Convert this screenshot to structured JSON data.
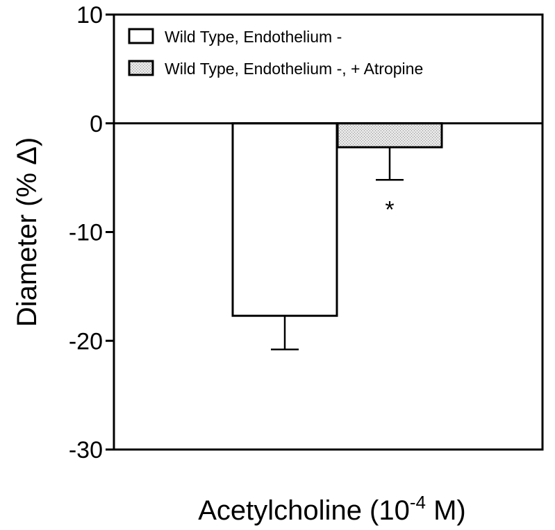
{
  "chart_data": {
    "type": "bar",
    "title": "",
    "xlabel": "Acetylcholine (10",
    "xlabel_exponent": "-4",
    "xlabel_suffix": " M)",
    "ylabel": "Diameter (% Δ)",
    "ylim": [
      -30,
      10
    ],
    "yticks": [
      10,
      0,
      -10,
      -20,
      -30
    ],
    "ytick_labels": [
      "10",
      "0",
      "-10",
      "-20",
      "-30"
    ],
    "grid": false,
    "legend_position": "top-left",
    "series": [
      {
        "name": "Wild Type, Endothelium -",
        "value": -17.7,
        "error": 3.1,
        "fill": "#ffffff",
        "pattern": "none"
      },
      {
        "name": "Wild Type, Endothelium -, + Atropine",
        "value": -2.2,
        "error": 3.0,
        "fill": "#d9d9d9",
        "pattern": "stipple",
        "annotation": "*"
      }
    ]
  }
}
